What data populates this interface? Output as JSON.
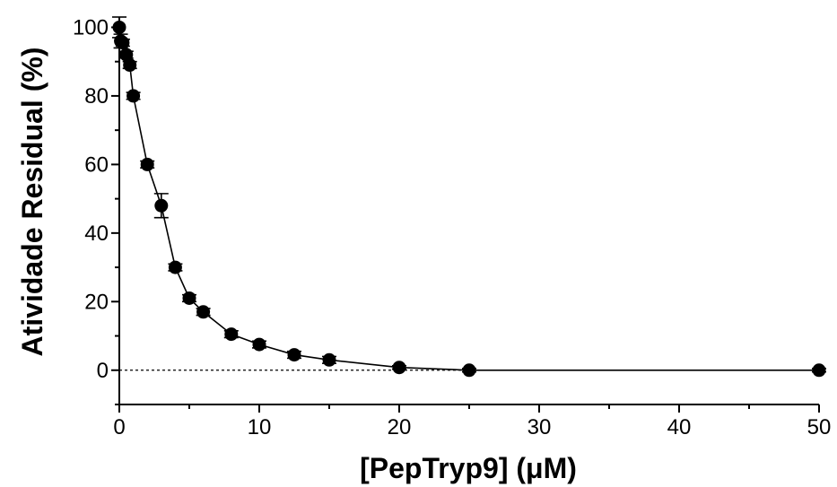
{
  "chart_data": {
    "type": "scatter",
    "xlabel": "[PepTryp9] (μM)",
    "ylabel": "Atividade Residual (%)",
    "xlim": [
      0,
      50
    ],
    "ylim": [
      -10,
      103
    ],
    "xticks": [
      0,
      10,
      20,
      30,
      40,
      50
    ],
    "yticks": [
      0,
      20,
      40,
      60,
      80,
      100
    ],
    "grid": false,
    "legend": "none",
    "reference_line": {
      "y": 0,
      "style": "dashed"
    },
    "series": [
      {
        "x": [
          0,
          0.1,
          0.25,
          0.5,
          0.75,
          1,
          2,
          3,
          4,
          5,
          6,
          8,
          10,
          12.5,
          15,
          20,
          25,
          50
        ],
        "y": [
          100,
          96,
          95.5,
          92,
          89,
          80,
          60,
          48,
          30,
          21,
          17,
          10.5,
          7.5,
          4.5,
          3,
          0.8,
          0,
          0
        ],
        "error": [
          3,
          2,
          1,
          1,
          1,
          1,
          1,
          3.5,
          1,
          1,
          1,
          1,
          1,
          1,
          1,
          0.5,
          0.5,
          0.5
        ],
        "fit_curve": true
      }
    ]
  }
}
